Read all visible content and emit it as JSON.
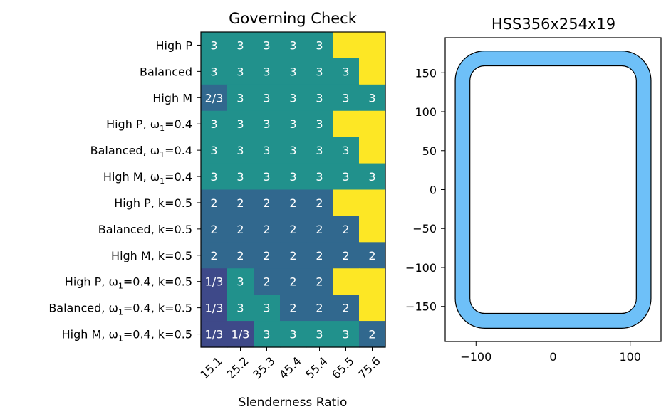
{
  "chart_data": [
    {
      "type": "heatmap",
      "title": "Governing Check",
      "xlabel": "Slenderness Ratio",
      "ylabel": "",
      "x_ticks": [
        "15.1",
        "25.2",
        "35.3",
        "45.4",
        "55.4",
        "65.5",
        "75.6"
      ],
      "y_ticks": [
        {
          "base": "High P",
          "sub": "",
          "tail": ""
        },
        {
          "base": "Balanced",
          "sub": "",
          "tail": ""
        },
        {
          "base": "High M",
          "sub": "",
          "tail": ""
        },
        {
          "base": "High P, ω",
          "sub": "1",
          "tail": "=0.4"
        },
        {
          "base": "Balanced, ω",
          "sub": "1",
          "tail": "=0.4"
        },
        {
          "base": "High M, ω",
          "sub": "1",
          "tail": "=0.4"
        },
        {
          "base": "High P, k=0.5",
          "sub": "",
          "tail": ""
        },
        {
          "base": "Balanced, k=0.5",
          "sub": "",
          "tail": ""
        },
        {
          "base": "High M, k=0.5",
          "sub": "",
          "tail": ""
        },
        {
          "base": "High P, ω",
          "sub": "1",
          "tail": "=0.4, k=0.5"
        },
        {
          "base": "Balanced, ω",
          "sub": "1",
          "tail": "=0.4, k=0.5"
        },
        {
          "base": "High M, ω",
          "sub": "1",
          "tail": "=0.4, k=0.5"
        }
      ],
      "cells": [
        [
          "3",
          "3",
          "3",
          "3",
          "3",
          "",
          ""
        ],
        [
          "3",
          "3",
          "3",
          "3",
          "3",
          "3",
          ""
        ],
        [
          "2/3",
          "3",
          "3",
          "3",
          "3",
          "3",
          "3"
        ],
        [
          "3",
          "3",
          "3",
          "3",
          "3",
          "",
          ""
        ],
        [
          "3",
          "3",
          "3",
          "3",
          "3",
          "3",
          ""
        ],
        [
          "3",
          "3",
          "3",
          "3",
          "3",
          "3",
          "3"
        ],
        [
          "2",
          "2",
          "2",
          "2",
          "2",
          "",
          ""
        ],
        [
          "2",
          "2",
          "2",
          "2",
          "2",
          "2",
          ""
        ],
        [
          "2",
          "2",
          "2",
          "2",
          "2",
          "2",
          "2"
        ],
        [
          "1/3",
          "3",
          "2",
          "2",
          "2",
          "",
          ""
        ],
        [
          "1/3",
          "3",
          "3",
          "2",
          "2",
          "2",
          ""
        ],
        [
          "1/3",
          "1/3",
          "3",
          "3",
          "3",
          "3",
          "2"
        ]
      ],
      "category_colors": {
        "1/3": "#3e4989",
        "2": "#31688e",
        "2/3": "#31688e",
        "3": "#21918c",
        "": "#fde725"
      },
      "text_color": "#ffffff"
    },
    {
      "type": "section-outline",
      "title": "HSS356x254x19",
      "outer": {
        "width": 254,
        "height": 356,
        "corner_radius": 19.05
      },
      "inner": {
        "width": 215.9,
        "height": 317.9,
        "corner_radius": 19.05
      },
      "xlim": [
        -140,
        140
      ],
      "ylim": [
        -195,
        195
      ],
      "x_ticks": [
        -100,
        0,
        100
      ],
      "y_ticks": [
        -150,
        -100,
        -50,
        0,
        50,
        100,
        150
      ],
      "fill_color": "#6ec0f8",
      "edge_color": "#000000",
      "hole_color": "#ffffff"
    }
  ]
}
